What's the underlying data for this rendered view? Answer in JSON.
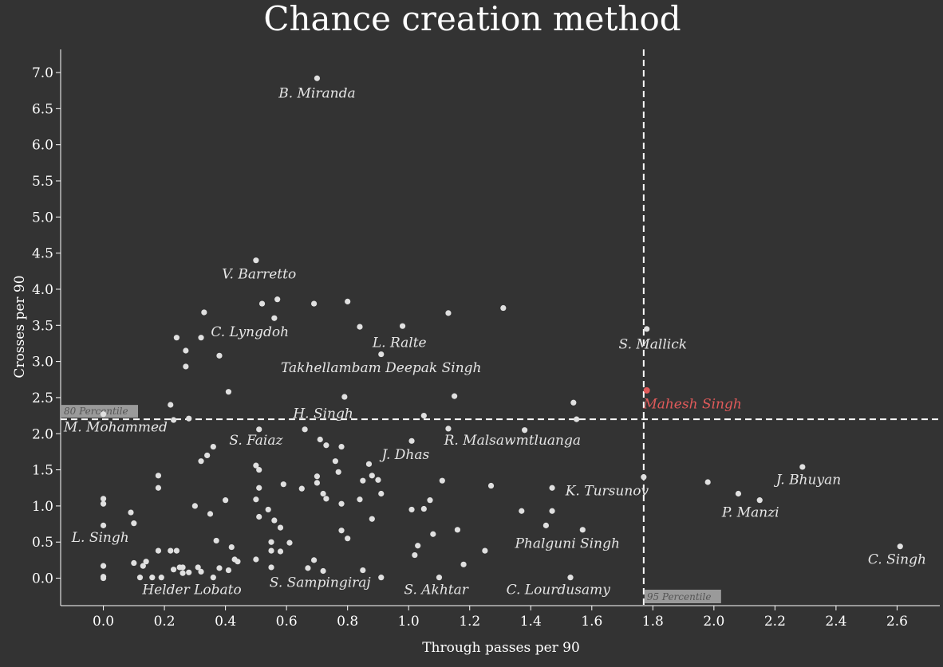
{
  "colors": {
    "background": "#333333",
    "point": "#e0e0e0",
    "highlight": "#e05a5a",
    "percentile_box": "#9a9a9a"
  },
  "chart_data": {
    "type": "scatter",
    "title": "Chance creation method",
    "xlabel": "Through passes per 90",
    "ylabel": "Crosses per 90",
    "xlim": [
      -0.14,
      2.74
    ],
    "ylim": [
      -0.38,
      7.32
    ],
    "xticks": [
      "0.0",
      "0.2",
      "0.4",
      "0.6",
      "0.8",
      "1.0",
      "1.2",
      "1.4",
      "1.6",
      "1.8",
      "2.0",
      "2.2",
      "2.4",
      "2.6"
    ],
    "yticks": [
      "0.0",
      "0.5",
      "1.0",
      "1.5",
      "2.0",
      "2.5",
      "3.0",
      "3.5",
      "4.0",
      "4.5",
      "5.0",
      "5.5",
      "6.0",
      "6.5",
      "7.0"
    ],
    "reference_lines": [
      {
        "axis": "y",
        "value": 2.2,
        "label": "80 Percentile"
      },
      {
        "axis": "x",
        "value": 1.77,
        "label": "95 Percentile"
      }
    ],
    "highlight": {
      "name": "Mahesh Singh",
      "x": 1.78,
      "y": 2.6
    },
    "labels": [
      {
        "name": "B. Miranda",
        "x": 0.7,
        "y": 6.65
      },
      {
        "name": "V. Barretto",
        "x": 0.51,
        "y": 4.15
      },
      {
        "name": "C. Lyngdoh",
        "x": 0.48,
        "y": 3.35
      },
      {
        "name": "L. Ralte",
        "x": 0.97,
        "y": 3.2
      },
      {
        "name": "Takhellambam Deepak Singh",
        "x": 0.91,
        "y": 2.85
      },
      {
        "name": "S. Mallick",
        "x": 1.8,
        "y": 3.18
      },
      {
        "name": "Mahesh Singh",
        "x": 1.93,
        "y": 2.35
      },
      {
        "name": "H. Singh",
        "x": 0.72,
        "y": 2.22
      },
      {
        "name": "M. Mohammed",
        "x": 0.04,
        "y": 2.03
      },
      {
        "name": "S. Faiaz",
        "x": 0.5,
        "y": 1.85
      },
      {
        "name": "R. Malsawmtluanga",
        "x": 1.34,
        "y": 1.85
      },
      {
        "name": "J. Dhas",
        "x": 0.99,
        "y": 1.65
      },
      {
        "name": "J. Bhuyan",
        "x": 2.31,
        "y": 1.3
      },
      {
        "name": "K. Tursunov",
        "x": 1.65,
        "y": 1.15
      },
      {
        "name": "P. Manzi",
        "x": 2.12,
        "y": 0.85
      },
      {
        "name": "L. Singh",
        "x": -0.01,
        "y": 0.5
      },
      {
        "name": "Phalguni Singh",
        "x": 1.52,
        "y": 0.42
      },
      {
        "name": "C. Singh",
        "x": 2.6,
        "y": 0.2
      },
      {
        "name": "Helder Lobato",
        "x": 0.29,
        "y": -0.22
      },
      {
        "name": "S. Sampingiraj",
        "x": 0.71,
        "y": -0.12
      },
      {
        "name": "S. Akhtar",
        "x": 1.09,
        "y": -0.22
      },
      {
        "name": "C. Lourdusamy",
        "x": 1.49,
        "y": -0.22
      }
    ],
    "points": [
      [
        0.7,
        6.92
      ],
      [
        0.5,
        4.4
      ],
      [
        0.33,
        3.68
      ],
      [
        0.52,
        3.8
      ],
      [
        0.57,
        3.86
      ],
      [
        0.69,
        3.8
      ],
      [
        0.8,
        3.83
      ],
      [
        1.13,
        3.67
      ],
      [
        1.31,
        3.74
      ],
      [
        0.24,
        3.33
      ],
      [
        0.32,
        3.33
      ],
      [
        0.27,
        3.15
      ],
      [
        0.56,
        3.6
      ],
      [
        0.84,
        3.48
      ],
      [
        0.98,
        3.49
      ],
      [
        1.78,
        3.45
      ],
      [
        0.38,
        3.08
      ],
      [
        0.91,
        3.1
      ],
      [
        0.27,
        2.93
      ],
      [
        0.41,
        2.58
      ],
      [
        0.79,
        2.51
      ],
      [
        1.15,
        2.52
      ],
      [
        1.54,
        2.43
      ],
      [
        0.22,
        2.4
      ],
      [
        0.23,
        2.19
      ],
      [
        0.28,
        2.21
      ],
      [
        0.0,
        2.27
      ],
      [
        0.51,
        2.06
      ],
      [
        1.05,
        2.25
      ],
      [
        1.13,
        2.07
      ],
      [
        1.38,
        2.05
      ],
      [
        1.55,
        2.2
      ],
      [
        0.66,
        2.06
      ],
      [
        0.71,
        1.92
      ],
      [
        0.73,
        1.84
      ],
      [
        0.78,
        1.82
      ],
      [
        1.01,
        1.9
      ],
      [
        0.36,
        1.82
      ],
      [
        0.34,
        1.7
      ],
      [
        0.32,
        1.62
      ],
      [
        0.76,
        1.62
      ],
      [
        0.87,
        1.58
      ],
      [
        0.5,
        1.56
      ],
      [
        0.51,
        1.5
      ],
      [
        0.77,
        1.47
      ],
      [
        0.88,
        1.42
      ],
      [
        0.18,
        1.42
      ],
      [
        0.7,
        1.41
      ],
      [
        0.7,
        1.32
      ],
      [
        0.9,
        1.36
      ],
      [
        0.85,
        1.35
      ],
      [
        1.11,
        1.35
      ],
      [
        1.27,
        1.28
      ],
      [
        0.59,
        1.3
      ],
      [
        0.65,
        1.24
      ],
      [
        0.51,
        1.25
      ],
      [
        0.18,
        1.25
      ],
      [
        1.47,
        1.25
      ],
      [
        1.77,
        1.4
      ],
      [
        1.98,
        1.33
      ],
      [
        2.08,
        1.17
      ],
      [
        2.15,
        1.08
      ],
      [
        2.29,
        1.54
      ],
      [
        0.72,
        1.17
      ],
      [
        0.73,
        1.1
      ],
      [
        0.91,
        1.17
      ],
      [
        0.84,
        1.09
      ],
      [
        1.07,
        1.08
      ],
      [
        0.4,
        1.08
      ],
      [
        0.5,
        1.09
      ],
      [
        0.3,
        1.0
      ],
      [
        0.78,
        1.03
      ],
      [
        0.0,
        1.1
      ],
      [
        0.0,
        1.03
      ],
      [
        0.54,
        0.95
      ],
      [
        1.05,
        0.96
      ],
      [
        1.01,
        0.95
      ],
      [
        1.37,
        0.93
      ],
      [
        1.47,
        0.93
      ],
      [
        0.09,
        0.91
      ],
      [
        0.35,
        0.89
      ],
      [
        0.51,
        0.85
      ],
      [
        0.56,
        0.8
      ],
      [
        0.88,
        0.82
      ],
      [
        0.0,
        0.73
      ],
      [
        0.1,
        0.76
      ],
      [
        0.58,
        0.7
      ],
      [
        0.78,
        0.66
      ],
      [
        1.08,
        0.61
      ],
      [
        1.16,
        0.67
      ],
      [
        1.45,
        0.73
      ],
      [
        1.57,
        0.67
      ],
      [
        0.8,
        0.55
      ],
      [
        0.37,
        0.52
      ],
      [
        0.55,
        0.5
      ],
      [
        0.61,
        0.49
      ],
      [
        1.03,
        0.45
      ],
      [
        0.42,
        0.43
      ],
      [
        0.18,
        0.38
      ],
      [
        0.22,
        0.38
      ],
      [
        0.24,
        0.38
      ],
      [
        0.55,
        0.38
      ],
      [
        0.58,
        0.37
      ],
      [
        1.25,
        0.38
      ],
      [
        1.02,
        0.32
      ],
      [
        0.43,
        0.26
      ],
      [
        0.5,
        0.26
      ],
      [
        0.44,
        0.23
      ],
      [
        0.69,
        0.25
      ],
      [
        0.1,
        0.21
      ],
      [
        0.14,
        0.23
      ],
      [
        0.13,
        0.17
      ],
      [
        0.0,
        0.17
      ],
      [
        0.26,
        0.15
      ],
      [
        0.25,
        0.15
      ],
      [
        0.31,
        0.15
      ],
      [
        0.38,
        0.14
      ],
      [
        0.41,
        0.11
      ],
      [
        0.23,
        0.12
      ],
      [
        0.26,
        0.07
      ],
      [
        0.28,
        0.08
      ],
      [
        0.32,
        0.09
      ],
      [
        0.55,
        0.15
      ],
      [
        0.67,
        0.14
      ],
      [
        0.72,
        0.1
      ],
      [
        0.85,
        0.11
      ],
      [
        1.18,
        0.19
      ],
      [
        0.0,
        0.02
      ],
      [
        0.0,
        0.0
      ],
      [
        0.12,
        0.01
      ],
      [
        0.16,
        0.01
      ],
      [
        0.19,
        0.01
      ],
      [
        0.36,
        0.01
      ],
      [
        0.91,
        0.01
      ],
      [
        1.1,
        0.01
      ],
      [
        1.53,
        0.01
      ],
      [
        2.61,
        0.44
      ]
    ]
  }
}
